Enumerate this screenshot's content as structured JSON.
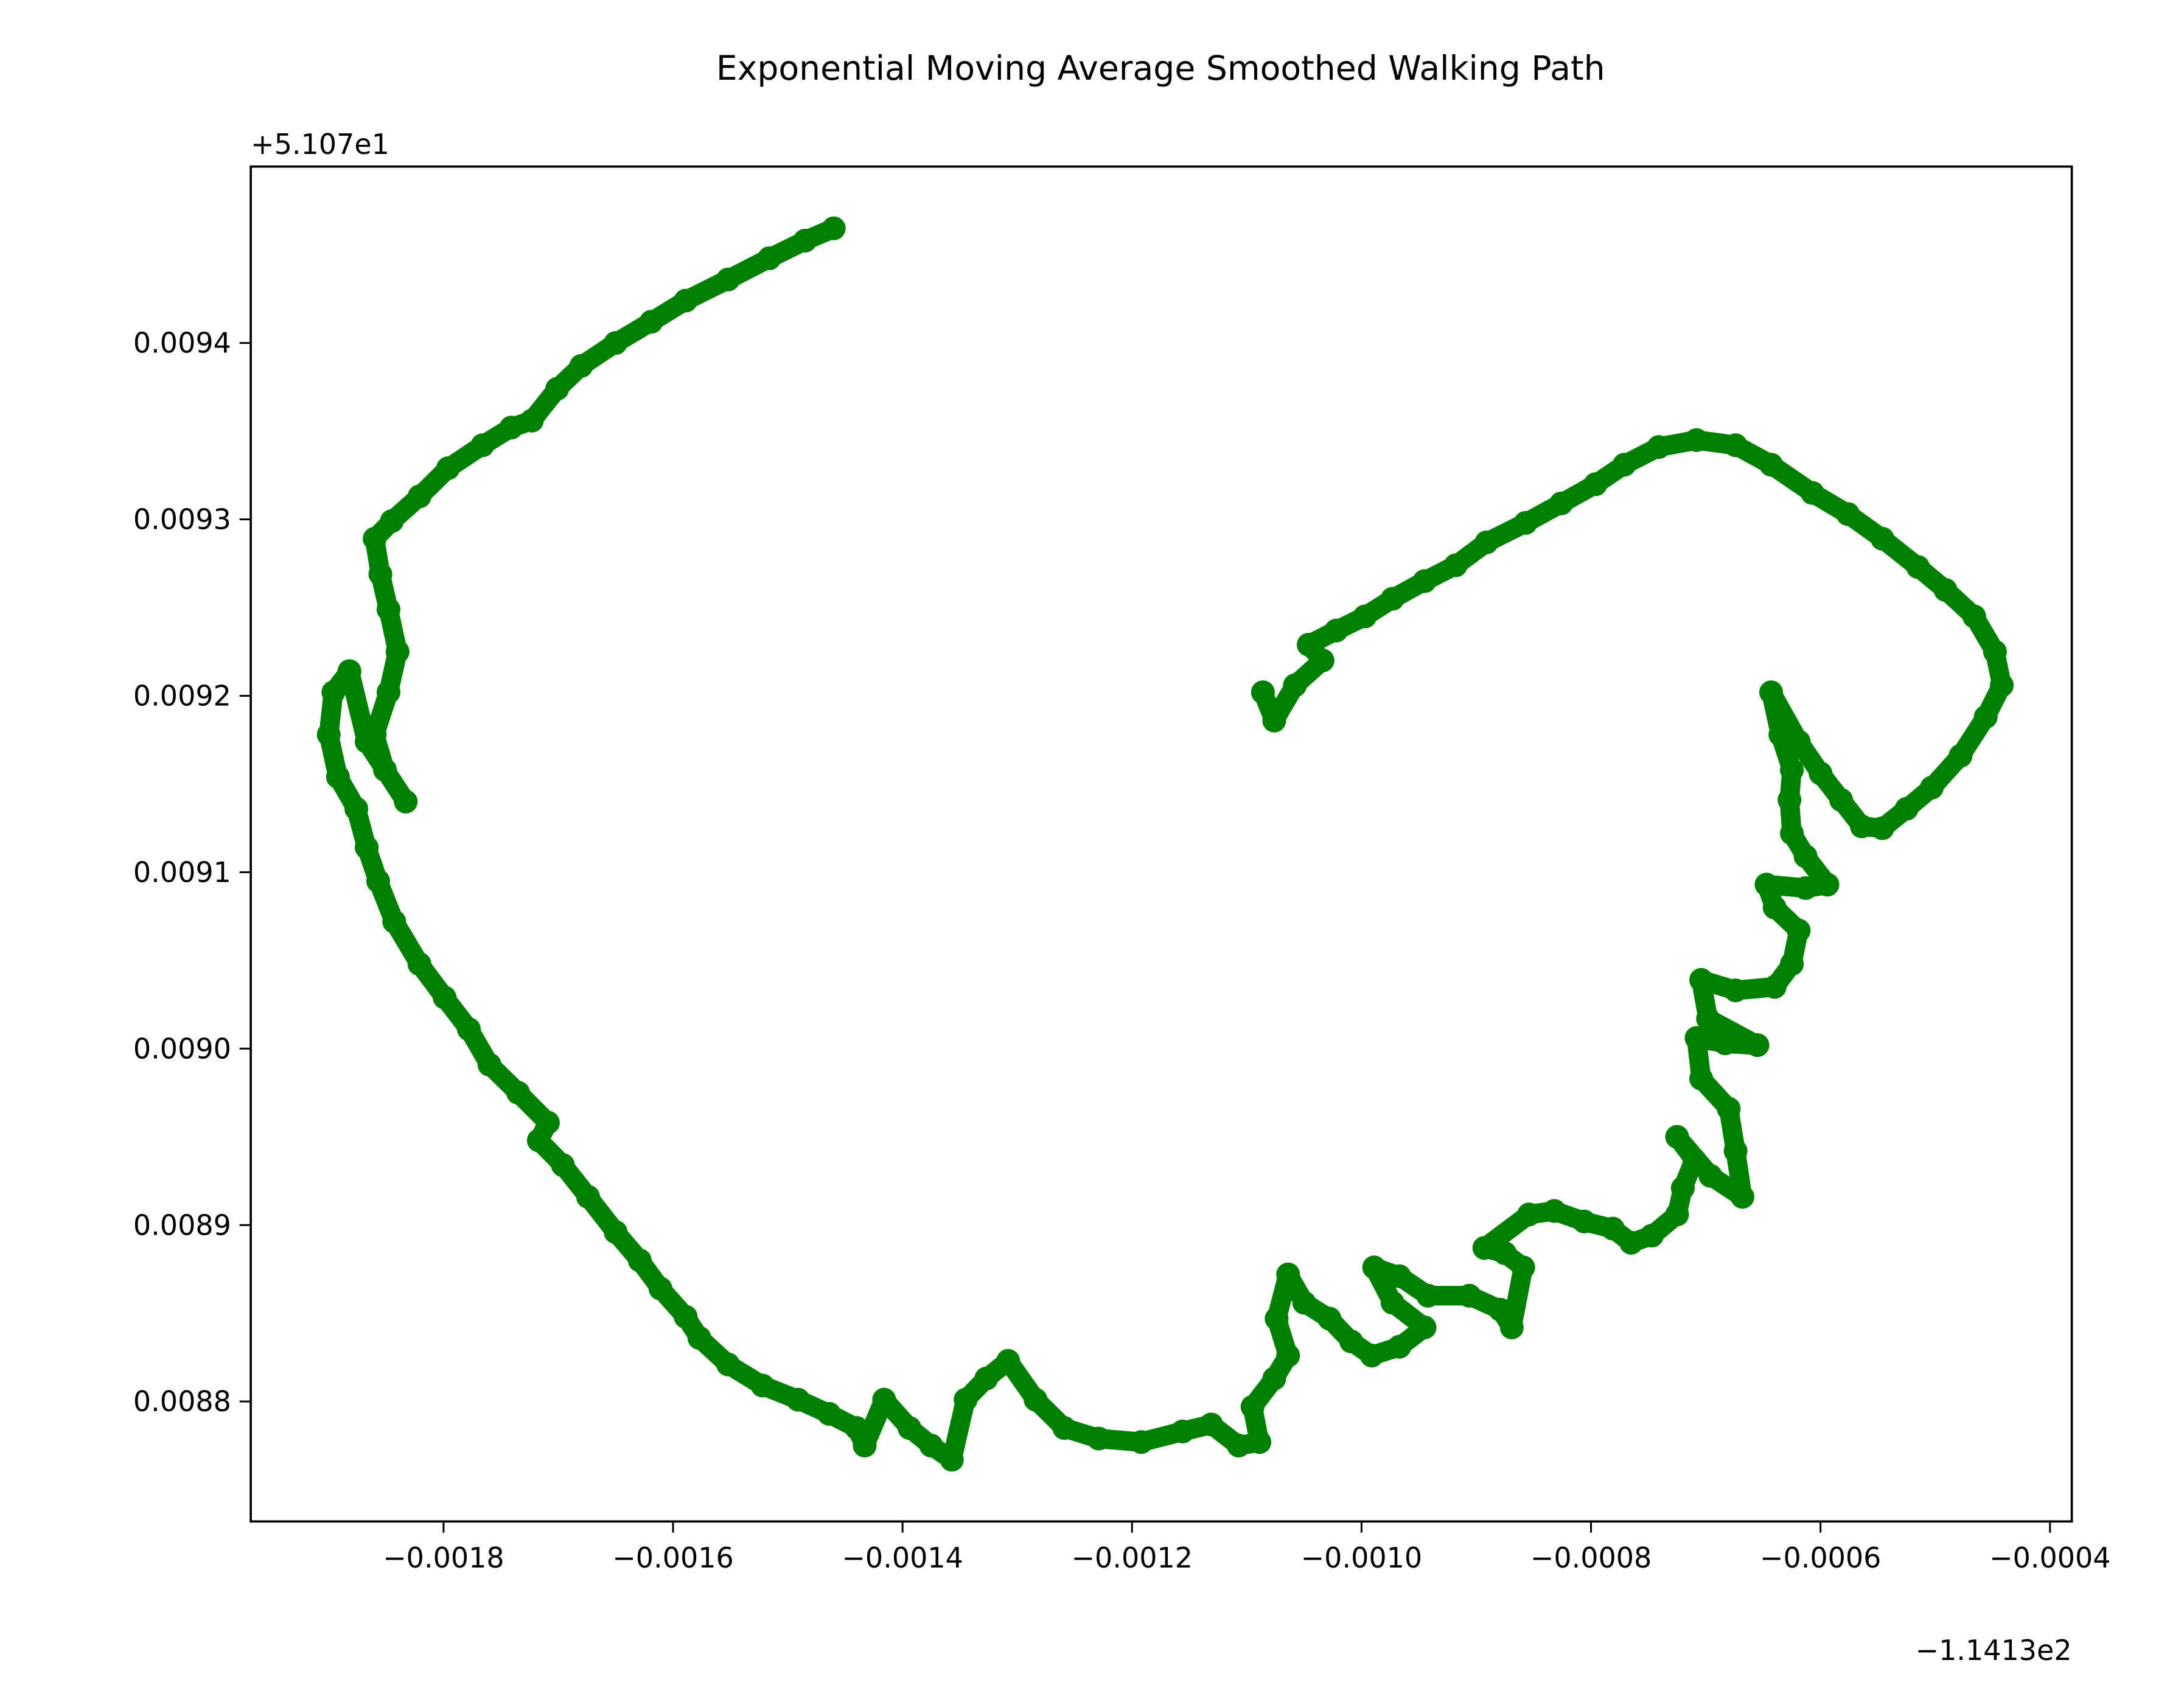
{
  "chart_data": {
    "type": "line",
    "title": "Exponential Moving Average Smoothed Walking Path",
    "xlabel": "",
    "ylabel": "",
    "x_offset_label": "−1.1413e2",
    "y_offset_label": "+5.107e1",
    "xlim": [
      -0.001968,
      -0.000381
    ],
    "ylim": [
      0.008732,
      0.0095
    ],
    "x_ticks": [
      -0.0018,
      -0.0016,
      -0.0014,
      -0.0012,
      -0.001,
      -0.0008,
      -0.0006,
      -0.0004
    ],
    "x_tick_labels": [
      "−0.0018",
      "−0.0016",
      "−0.0014",
      "−0.0012",
      "−0.0010",
      "−0.0008",
      "−0.0006",
      "−0.0004"
    ],
    "y_ticks": [
      0.0088,
      0.0089,
      0.009,
      0.0091,
      0.0092,
      0.0093,
      0.0094
    ],
    "y_tick_labels": [
      "0.0088",
      "0.0089",
      "0.0090",
      "0.0091",
      "0.0092",
      "0.0093",
      "0.0094"
    ],
    "grid": false,
    "series": [
      {
        "color": "#008000",
        "marker": "circle",
        "x": [
          -0.00146,
          -0.001485,
          -0.001516,
          -0.001552,
          -0.001589,
          -0.001619,
          -0.00165,
          -0.00168,
          -0.001701,
          -0.001723,
          -0.001741,
          -0.001766,
          -0.001796,
          -0.001821,
          -0.001845,
          -0.00186,
          -0.001855,
          -0.001848,
          -0.00184,
          -0.001848,
          -0.00186,
          -0.001851,
          -0.001833,
          -0.001867,
          -0.001882,
          -0.001896,
          -0.0019,
          -0.001892,
          -0.001876,
          -0.001867,
          -0.001857,
          -0.001843,
          -0.001821,
          -0.001799,
          -0.001778,
          -0.00176,
          -0.001735,
          -0.001709,
          -0.001717,
          -0.001696,
          -0.001674,
          -0.00165,
          -0.001629,
          -0.001611,
          -0.001589,
          -0.001577,
          -0.001552,
          -0.001522,
          -0.001491,
          -0.001464,
          -0.00144,
          -0.001433,
          -0.001416,
          -0.001394,
          -0.001375,
          -0.001357,
          -0.001345,
          -0.001327,
          -0.001308,
          -0.001284,
          -0.001259,
          -0.001229,
          -0.001192,
          -0.001156,
          -0.001131,
          -0.001107,
          -0.001089,
          -0.001095,
          -0.001076,
          -0.001064,
          -0.001074,
          -0.001064,
          -0.00105,
          -0.001028,
          -0.001009,
          -0.000991,
          -0.000967,
          -0.000945,
          -0.000973,
          -0.000989,
          -0.000967,
          -0.000942,
          -0.000906,
          -0.000879,
          -0.000869,
          -0.000859,
          -0.000875,
          -0.000893,
          -0.000854,
          -0.000832,
          -0.000806,
          -0.000781,
          -0.000765,
          -0.000747,
          -0.000725,
          -0.00072,
          -0.00071,
          -0.000725,
          -0.000696,
          -0.000668,
          -0.000674,
          -0.00068,
          -0.000704,
          -0.000708,
          -0.000683,
          -0.000655,
          -0.000698,
          -0.000704,
          -0.000674,
          -0.00064,
          -0.000625,
          -0.000619,
          -0.00064,
          -0.000647,
          -0.000613,
          -0.000594,
          -0.000613,
          -0.000625,
          -0.000627,
          -0.000625,
          -0.000635,
          -0.000643,
          -0.000619,
          -0.0006,
          -0.000582,
          -0.000564,
          -0.000546,
          -0.000525,
          -0.000503,
          -0.000478,
          -0.000456,
          -0.000442,
          -0.000448,
          -0.000466,
          -0.000491,
          -0.000515,
          -0.000546,
          -0.000576,
          -0.000607,
          -0.000643,
          -0.000674,
          -0.000708,
          -0.000741,
          -0.000771,
          -0.000796,
          -0.000826,
          -0.000857,
          -0.000891,
          -0.000918,
          -0.000945,
          -0.000973,
          -0.000997,
          -0.001022,
          -0.001046,
          -0.001034,
          -0.001058,
          -0.001076,
          -0.001086
        ],
        "y": [
          0.009465,
          0.009458,
          0.009448,
          0.009436,
          0.009424,
          0.009412,
          0.0094,
          0.009387,
          0.009374,
          0.009356,
          0.009352,
          0.009342,
          0.009329,
          0.009313,
          0.009299,
          0.009289,
          0.009269,
          0.009249,
          0.009225,
          0.009202,
          0.009178,
          0.009158,
          0.00914,
          0.009174,
          0.009214,
          0.009202,
          0.009178,
          0.009154,
          0.009136,
          0.009114,
          0.009095,
          0.009072,
          0.009048,
          0.009029,
          0.009011,
          0.008991,
          0.008975,
          0.008958,
          0.008948,
          0.008934,
          0.008916,
          0.008896,
          0.00888,
          0.008864,
          0.008848,
          0.008836,
          0.008821,
          0.008809,
          0.008801,
          0.008793,
          0.008785,
          0.008775,
          0.008801,
          0.008785,
          0.008775,
          0.008767,
          0.008801,
          0.008813,
          0.008823,
          0.008801,
          0.008785,
          0.008779,
          0.008777,
          0.008783,
          0.008787,
          0.008775,
          0.008777,
          0.008797,
          0.008813,
          0.008826,
          0.008847,
          0.008872,
          0.008856,
          0.008847,
          0.008834,
          0.008826,
          0.008831,
          0.008842,
          0.008856,
          0.008876,
          0.008871,
          0.00886,
          0.00886,
          0.008852,
          0.008842,
          0.008876,
          0.008884,
          0.008887,
          0.008906,
          0.008908,
          0.008902,
          0.008898,
          0.00889,
          0.008894,
          0.008906,
          0.008921,
          0.008937,
          0.00895,
          0.008928,
          0.008916,
          0.008942,
          0.008966,
          0.008983,
          0.009006,
          0.009003,
          0.009002,
          0.009017,
          0.009039,
          0.009033,
          0.009035,
          0.009048,
          0.009067,
          0.00908,
          0.009093,
          0.009091,
          0.009093,
          0.009109,
          0.009122,
          0.009141,
          0.009158,
          0.009178,
          0.009202,
          0.009174,
          0.009156,
          0.009141,
          0.009126,
          0.009125,
          0.009136,
          0.009148,
          0.009166,
          0.009188,
          0.009206,
          0.009225,
          0.009245,
          0.00926,
          0.009273,
          0.009289,
          0.009303,
          0.009315,
          0.009331,
          0.009342,
          0.009345,
          0.009341,
          0.009331,
          0.00932,
          0.009309,
          0.009298,
          0.009287,
          0.009274,
          0.009265,
          0.009255,
          0.009245,
          0.009237,
          0.009229,
          0.00922,
          0.009206,
          0.009186,
          0.009202
        ]
      }
    ]
  }
}
